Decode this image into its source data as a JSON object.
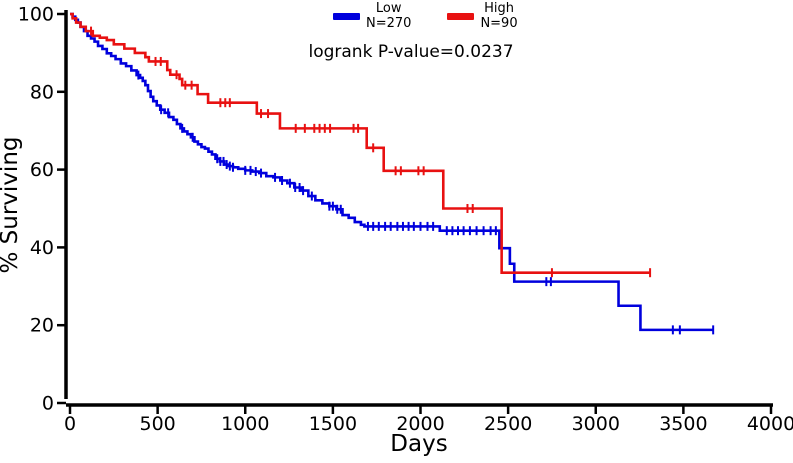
{
  "figure": {
    "pvalue_text": "logrank P-value=0.0237",
    "background": "#ffffff",
    "axis_color": "#000000",
    "legend": [
      {
        "name": "Low",
        "n_label": "N=270",
        "color": "#0000dd"
      },
      {
        "name": "High",
        "n_label": "N=90",
        "color": "#e81111"
      }
    ]
  },
  "chart_data": {
    "type": "line",
    "subtype": "kaplan-meier-step-survival",
    "title": "",
    "xlabel": "Days",
    "ylabel": "% Surviving",
    "xlim": [
      0,
      4000
    ],
    "ylim": [
      0,
      100
    ],
    "x_ticks": [
      0,
      500,
      1000,
      1500,
      2000,
      2500,
      3000,
      3500,
      4000
    ],
    "y_ticks": [
      0,
      20,
      40,
      60,
      80,
      100
    ],
    "grid": false,
    "legend_position": "top-center",
    "annotation": "logrank P-value=0.0237",
    "series": [
      {
        "name": "Low",
        "n": 270,
        "color": "#0000dd",
        "end_day": 3670,
        "steps": [
          [
            0,
            100
          ],
          [
            15,
            99.3
          ],
          [
            30,
            98.5
          ],
          [
            45,
            97.8
          ],
          [
            60,
            96.7
          ],
          [
            80,
            95.6
          ],
          [
            100,
            94.4
          ],
          [
            120,
            93.7
          ],
          [
            140,
            92.9
          ],
          [
            160,
            91.8
          ],
          [
            185,
            91
          ],
          [
            210,
            89.9
          ],
          [
            235,
            89.2
          ],
          [
            260,
            88.4
          ],
          [
            290,
            87.3
          ],
          [
            320,
            86.6
          ],
          [
            350,
            85.5
          ],
          [
            380,
            84.3
          ],
          [
            400,
            83.6
          ],
          [
            415,
            82.8
          ],
          [
            430,
            81.7
          ],
          [
            445,
            80.2
          ],
          [
            460,
            78.7
          ],
          [
            475,
            77.6
          ],
          [
            495,
            76.5
          ],
          [
            515,
            75.4
          ],
          [
            540,
            74.6
          ],
          [
            565,
            73.5
          ],
          [
            590,
            72.8
          ],
          [
            610,
            71.7
          ],
          [
            630,
            70.6
          ],
          [
            650,
            69.8
          ],
          [
            670,
            69.1
          ],
          [
            690,
            68.3
          ],
          [
            710,
            67.2
          ],
          [
            730,
            66.5
          ],
          [
            750,
            65.8
          ],
          [
            770,
            65.4
          ],
          [
            790,
            64.6
          ],
          [
            810,
            63.9
          ],
          [
            830,
            62.8
          ],
          [
            855,
            62.1
          ],
          [
            880,
            61.3
          ],
          [
            905,
            60.9
          ],
          [
            930,
            60.6
          ],
          [
            960,
            60.2
          ],
          [
            1000,
            59.8
          ],
          [
            1040,
            59.5
          ],
          [
            1080,
            59.1
          ],
          [
            1120,
            58.3
          ],
          [
            1160,
            58
          ],
          [
            1200,
            57.2
          ],
          [
            1240,
            56.5
          ],
          [
            1280,
            55.4
          ],
          [
            1320,
            54.6
          ],
          [
            1360,
            53.2
          ],
          [
            1400,
            52.1
          ],
          [
            1440,
            51.3
          ],
          [
            1480,
            50.6
          ],
          [
            1520,
            49.8
          ],
          [
            1555,
            48.3
          ],
          [
            1590,
            47.6
          ],
          [
            1625,
            46.5
          ],
          [
            1660,
            45.8
          ],
          [
            1680,
            45.4
          ],
          [
            2110,
            44.3
          ],
          [
            2450,
            39.8
          ],
          [
            2510,
            35.8
          ],
          [
            2535,
            31.2
          ],
          [
            3130,
            25
          ],
          [
            3255,
            18.8
          ]
        ],
        "censor_days": [
          390,
          520,
          560,
          640,
          700,
          840,
          858,
          876,
          894,
          912,
          930,
          1000,
          1030,
          1060,
          1090,
          1170,
          1210,
          1255,
          1285,
          1310,
          1330,
          1380,
          1480,
          1500,
          1525,
          1545,
          1700,
          1730,
          1762,
          1798,
          1830,
          1868,
          1900,
          1932,
          1962,
          2000,
          2040,
          2072,
          2150,
          2182,
          2214,
          2246,
          2282,
          2320,
          2360,
          2400,
          2430,
          2718,
          2744,
          3440,
          3480,
          3670
        ]
      },
      {
        "name": "High",
        "n": 90,
        "color": "#e81111",
        "end_day": 3310,
        "steps": [
          [
            0,
            100
          ],
          [
            15,
            98.9
          ],
          [
            35,
            97.8
          ],
          [
            60,
            96.7
          ],
          [
            90,
            95.6
          ],
          [
            130,
            94.4
          ],
          [
            170,
            93.9
          ],
          [
            210,
            93.3
          ],
          [
            250,
            92.2
          ],
          [
            310,
            91.1
          ],
          [
            370,
            90
          ],
          [
            430,
            88.9
          ],
          [
            450,
            87.8
          ],
          [
            555,
            85.6
          ],
          [
            572,
            84.4
          ],
          [
            625,
            83.3
          ],
          [
            640,
            81.7
          ],
          [
            728,
            79.4
          ],
          [
            788,
            77.2
          ],
          [
            1066,
            74.4
          ],
          [
            1198,
            70.6
          ],
          [
            1693,
            65.6
          ],
          [
            1790,
            59.7
          ],
          [
            2130,
            50
          ],
          [
            2463,
            33.5
          ]
        ],
        "censor_days": [
          120,
          488,
          518,
          608,
          658,
          694,
          858,
          886,
          912,
          1090,
          1130,
          1288,
          1340,
          1394,
          1424,
          1454,
          1484,
          1618,
          1644,
          1730,
          1858,
          1888,
          1988,
          2018,
          2268,
          2298,
          2750,
          3310
        ]
      }
    ]
  }
}
